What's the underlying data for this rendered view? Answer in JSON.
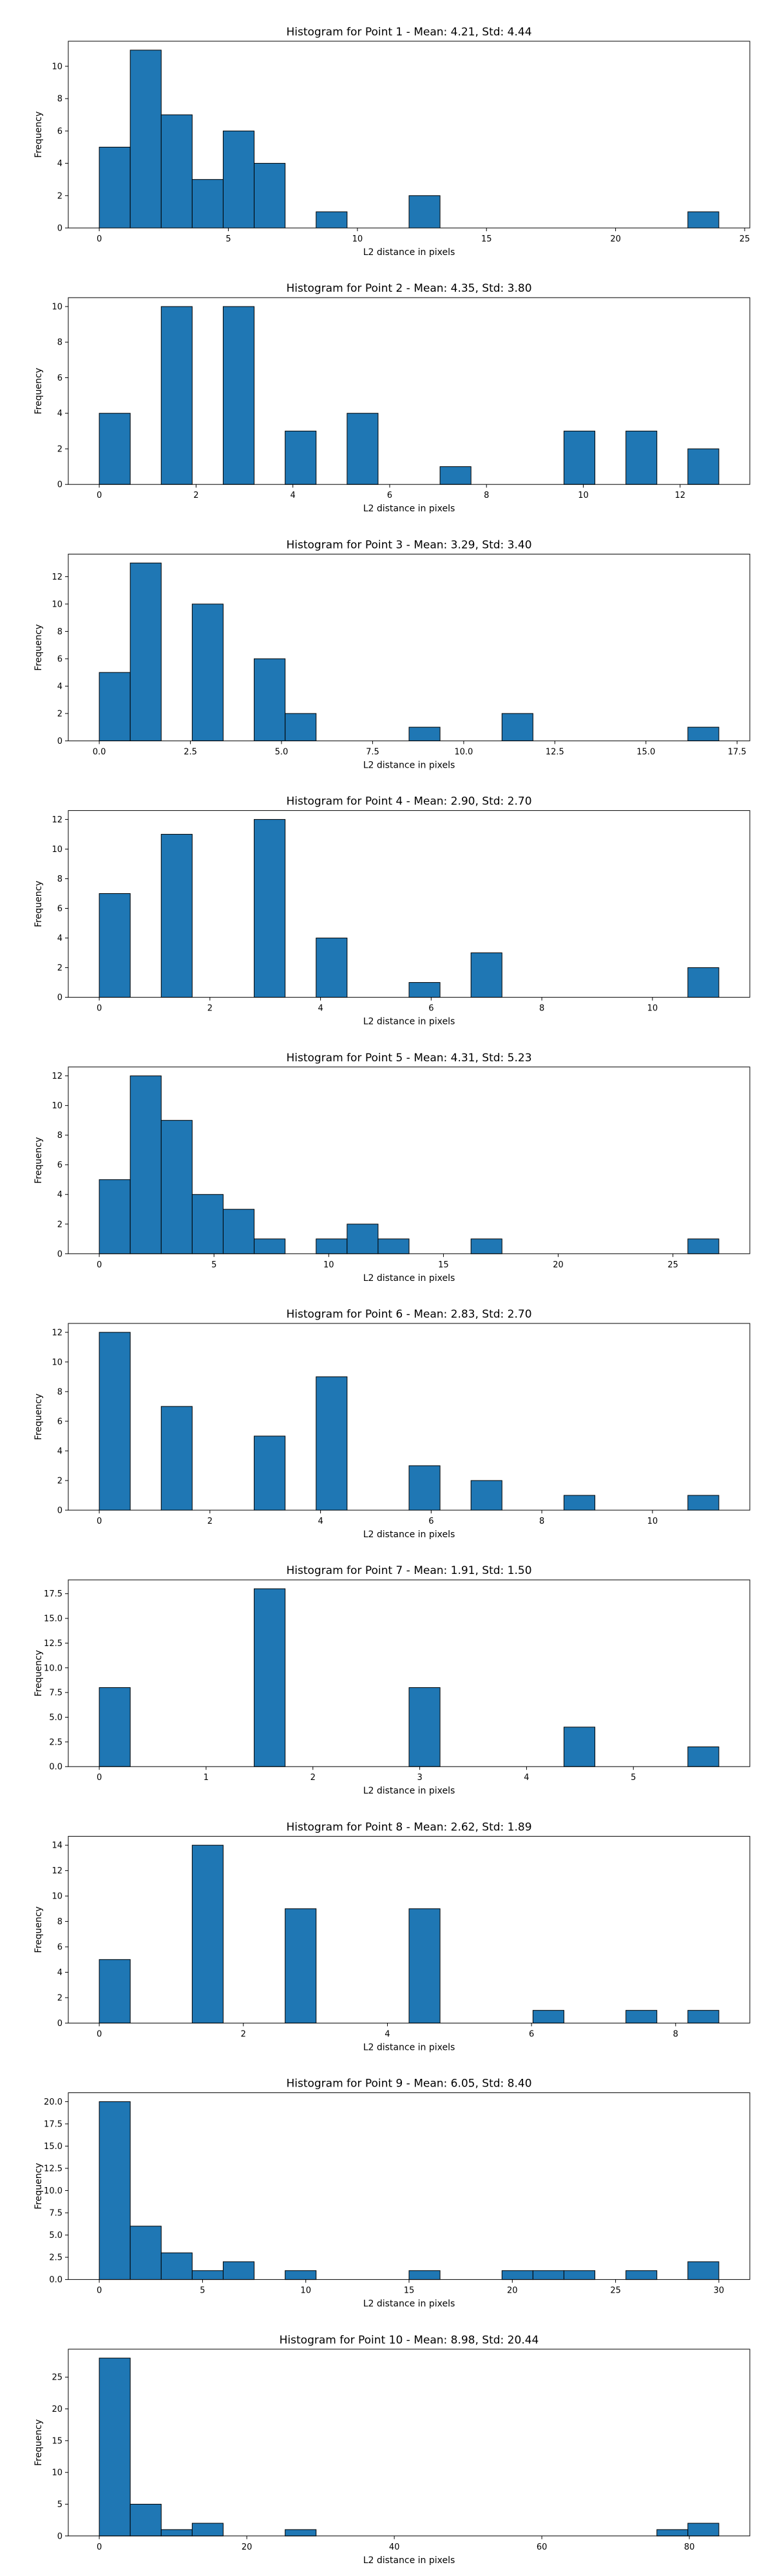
{
  "style": {
    "bar_color": "#1f77b4",
    "edge_color": "#000000"
  },
  "chart_data": [
    {
      "type": "bar",
      "title": "Histogram for Point 1 - Mean: 4.21, Std: 4.44",
      "xlabel": "L2 distance in pixels",
      "ylabel": "Frequency",
      "xlim": [
        -1.2,
        25.2
      ],
      "ylim": [
        0,
        11.55
      ],
      "xticks": [
        0,
        5,
        10,
        15,
        20,
        25
      ],
      "xtick_labels": [
        "0",
        "5",
        "10",
        "15",
        "20",
        "25"
      ],
      "yticks": [
        0,
        2,
        4,
        6,
        8,
        10
      ],
      "ytick_labels": [
        "0",
        "2",
        "4",
        "6",
        "8",
        "10"
      ],
      "bin_edges": [
        0.0,
        1.2,
        2.4,
        3.6,
        4.8,
        6.0,
        7.2,
        8.4,
        9.6,
        10.8,
        12.0,
        13.2,
        14.4,
        15.6,
        16.8,
        18.0,
        19.2,
        20.4,
        21.6,
        22.8,
        24.0
      ],
      "values": [
        5,
        11,
        7,
        3,
        6,
        4,
        0,
        1,
        0,
        0,
        2,
        0,
        0,
        0,
        0,
        0,
        0,
        0,
        0,
        1
      ]
    },
    {
      "type": "bar",
      "title": "Histogram for Point 2 - Mean: 4.35, Std: 3.80",
      "xlabel": "L2 distance in pixels",
      "ylabel": "Frequency",
      "xlim": [
        -0.64,
        13.44
      ],
      "ylim": [
        0,
        10.5
      ],
      "xticks": [
        0,
        2,
        4,
        6,
        8,
        10,
        12
      ],
      "xtick_labels": [
        "0",
        "2",
        "4",
        "6",
        "8",
        "10",
        "12"
      ],
      "yticks": [
        0,
        2,
        4,
        6,
        8,
        10
      ],
      "ytick_labels": [
        "0",
        "2",
        "4",
        "6",
        "8",
        "10"
      ],
      "bin_edges": [
        0.0,
        0.64,
        1.28,
        1.92,
        2.56,
        3.2,
        3.84,
        4.48,
        5.12,
        5.76,
        6.4,
        7.04,
        7.68,
        8.32,
        8.96,
        9.6,
        10.24,
        10.88,
        11.52,
        12.16,
        12.8
      ],
      "values": [
        4,
        0,
        10,
        0,
        10,
        0,
        3,
        0,
        4,
        0,
        0,
        1,
        0,
        0,
        0,
        3,
        0,
        3,
        0,
        2
      ]
    },
    {
      "type": "bar",
      "title": "Histogram for Point 3 - Mean: 3.29, Std: 3.40",
      "xlabel": "L2 distance in pixels",
      "ylabel": "Frequency",
      "xlim": [
        -0.85,
        17.85
      ],
      "ylim": [
        0,
        13.65
      ],
      "xticks": [
        0,
        2.5,
        5,
        7.5,
        10,
        12.5,
        15,
        17.5
      ],
      "xtick_labels": [
        "0.0",
        "2.5",
        "5.0",
        "7.5",
        "10.0",
        "12.5",
        "15.0",
        "17.5"
      ],
      "yticks": [
        0,
        2,
        4,
        6,
        8,
        10,
        12
      ],
      "ytick_labels": [
        "0",
        "2",
        "4",
        "6",
        "8",
        "10",
        "12"
      ],
      "bin_edges": [
        0.0,
        0.85,
        1.7,
        2.55,
        3.4,
        4.25,
        5.1,
        5.95,
        6.8,
        7.65,
        8.5,
        9.35,
        10.2,
        11.05,
        11.9,
        12.75,
        13.6,
        14.45,
        15.3,
        16.15,
        17.0
      ],
      "values": [
        5,
        13,
        0,
        10,
        0,
        6,
        2,
        0,
        0,
        0,
        1,
        0,
        0,
        2,
        0,
        0,
        0,
        0,
        0,
        1
      ]
    },
    {
      "type": "bar",
      "title": "Histogram for Point 4 - Mean: 2.90, Std: 2.70",
      "xlabel": "L2 distance in pixels",
      "ylabel": "Frequency",
      "xlim": [
        -0.56,
        11.76
      ],
      "ylim": [
        0,
        12.6
      ],
      "xticks": [
        0,
        2,
        4,
        6,
        8,
        10
      ],
      "xtick_labels": [
        "0",
        "2",
        "4",
        "6",
        "8",
        "10"
      ],
      "yticks": [
        0,
        2,
        4,
        6,
        8,
        10,
        12
      ],
      "ytick_labels": [
        "0",
        "2",
        "4",
        "6",
        "8",
        "10",
        "12"
      ],
      "bin_edges": [
        0.0,
        0.56,
        1.12,
        1.68,
        2.24,
        2.8,
        3.36,
        3.92,
        4.48,
        5.04,
        5.6,
        6.16,
        6.72,
        7.28,
        7.84,
        8.4,
        8.96,
        9.52,
        10.08,
        10.64,
        11.2
      ],
      "values": [
        7,
        0,
        11,
        0,
        0,
        12,
        0,
        4,
        0,
        0,
        1,
        0,
        3,
        0,
        0,
        0,
        0,
        0,
        0,
        2
      ]
    },
    {
      "type": "bar",
      "title": "Histogram for Point 5 - Mean: 4.31, Std: 5.23",
      "xlabel": "L2 distance in pixels",
      "ylabel": "Frequency",
      "xlim": [
        -1.35,
        28.35
      ],
      "ylim": [
        0,
        12.6
      ],
      "xticks": [
        0,
        5,
        10,
        15,
        20,
        25
      ],
      "xtick_labels": [
        "0",
        "5",
        "10",
        "15",
        "20",
        "25"
      ],
      "yticks": [
        0,
        2,
        4,
        6,
        8,
        10,
        12
      ],
      "ytick_labels": [
        "0",
        "2",
        "4",
        "6",
        "8",
        "10",
        "12"
      ],
      "bin_edges": [
        0.0,
        1.35,
        2.7,
        4.05,
        5.4,
        6.75,
        8.1,
        9.45,
        10.8,
        12.15,
        13.5,
        14.85,
        16.2,
        17.55,
        18.9,
        20.25,
        21.6,
        22.95,
        24.3,
        25.65,
        27.0
      ],
      "values": [
        5,
        12,
        9,
        4,
        3,
        1,
        0,
        1,
        2,
        1,
        0,
        0,
        1,
        0,
        0,
        0,
        0,
        0,
        0,
        1
      ]
    },
    {
      "type": "bar",
      "title": "Histogram for Point 6 - Mean: 2.83, Std: 2.70",
      "xlabel": "L2 distance in pixels",
      "ylabel": "Frequency",
      "xlim": [
        -0.56,
        11.76
      ],
      "ylim": [
        0,
        12.6
      ],
      "xticks": [
        0,
        2,
        4,
        6,
        8,
        10
      ],
      "xtick_labels": [
        "0",
        "2",
        "4",
        "6",
        "8",
        "10"
      ],
      "yticks": [
        0,
        2,
        4,
        6,
        8,
        10,
        12
      ],
      "ytick_labels": [
        "0",
        "2",
        "4",
        "6",
        "8",
        "10",
        "12"
      ],
      "bin_edges": [
        0.0,
        0.56,
        1.12,
        1.68,
        2.24,
        2.8,
        3.36,
        3.92,
        4.48,
        5.04,
        5.6,
        6.16,
        6.72,
        7.28,
        7.84,
        8.4,
        8.96,
        9.52,
        10.08,
        10.64,
        11.2
      ],
      "values": [
        12,
        0,
        7,
        0,
        0,
        5,
        0,
        9,
        0,
        0,
        3,
        0,
        2,
        0,
        0,
        1,
        0,
        0,
        0,
        1
      ]
    },
    {
      "type": "bar",
      "title": "Histogram for Point 7 - Mean: 1.91, Std: 1.50",
      "xlabel": "L2 distance in pixels",
      "ylabel": "Frequency",
      "xlim": [
        -0.29,
        6.09
      ],
      "ylim": [
        0,
        18.9
      ],
      "xticks": [
        0,
        1,
        2,
        3,
        4,
        5
      ],
      "xtick_labels": [
        "0",
        "1",
        "2",
        "3",
        "4",
        "5"
      ],
      "yticks": [
        0,
        2.5,
        5,
        7.5,
        10,
        12.5,
        15,
        17.5
      ],
      "ytick_labels": [
        "0.0",
        "2.5",
        "5.0",
        "7.5",
        "10.0",
        "12.5",
        "15.0",
        "17.5"
      ],
      "bin_edges": [
        0.0,
        0.29,
        0.58,
        0.87,
        1.16,
        1.45,
        1.74,
        2.03,
        2.32,
        2.61,
        2.9,
        3.19,
        3.48,
        3.77,
        4.06,
        4.35,
        4.64,
        4.93,
        5.22,
        5.51,
        5.8
      ],
      "values": [
        8,
        0,
        0,
        0,
        0,
        18,
        0,
        0,
        0,
        0,
        8,
        0,
        0,
        0,
        0,
        4,
        0,
        0,
        0,
        2
      ]
    },
    {
      "type": "bar",
      "title": "Histogram for Point 8 - Mean: 2.62, Std: 1.89",
      "xlabel": "L2 distance in pixels",
      "ylabel": "Frequency",
      "xlim": [
        -0.43,
        9.03
      ],
      "ylim": [
        0,
        14.7
      ],
      "xticks": [
        0,
        2,
        4,
        6,
        8
      ],
      "xtick_labels": [
        "0",
        "2",
        "4",
        "6",
        "8"
      ],
      "yticks": [
        0,
        2,
        4,
        6,
        8,
        10,
        12,
        14
      ],
      "ytick_labels": [
        "0",
        "2",
        "4",
        "6",
        "8",
        "10",
        "12",
        "14"
      ],
      "bin_edges": [
        0.0,
        0.43,
        0.86,
        1.29,
        1.72,
        2.15,
        2.58,
        3.01,
        3.44,
        3.87,
        4.3,
        4.73,
        5.16,
        5.59,
        6.02,
        6.45,
        6.88,
        7.31,
        7.74,
        8.17,
        8.6
      ],
      "values": [
        5,
        0,
        0,
        14,
        0,
        0,
        9,
        0,
        0,
        0,
        9,
        0,
        0,
        0,
        1,
        0,
        0,
        1,
        0,
        1
      ]
    },
    {
      "type": "bar",
      "title": "Histogram for Point 9 - Mean: 6.05, Std: 8.40",
      "xlabel": "L2 distance in pixels",
      "ylabel": "Frequency",
      "xlim": [
        -1.5,
        31.5
      ],
      "ylim": [
        0,
        21.0
      ],
      "xticks": [
        0,
        5,
        10,
        15,
        20,
        25,
        30
      ],
      "xtick_labels": [
        "0",
        "5",
        "10",
        "15",
        "20",
        "25",
        "30"
      ],
      "yticks": [
        0,
        2.5,
        5,
        7.5,
        10,
        12.5,
        15,
        17.5,
        20
      ],
      "ytick_labels": [
        "0.0",
        "2.5",
        "5.0",
        "7.5",
        "10.0",
        "12.5",
        "15.0",
        "17.5",
        "20.0"
      ],
      "bin_edges": [
        0.0,
        1.5,
        3.0,
        4.5,
        6.0,
        7.5,
        9.0,
        10.5,
        12.0,
        13.5,
        15.0,
        16.5,
        18.0,
        19.5,
        21.0,
        22.5,
        24.0,
        25.5,
        27.0,
        28.5,
        30.0
      ],
      "values": [
        20,
        6,
        3,
        1,
        2,
        0,
        1,
        0,
        0,
        0,
        1,
        0,
        0,
        1,
        1,
        1,
        0,
        1,
        0,
        2
      ]
    },
    {
      "type": "bar",
      "title": "Histogram for Point 10 - Mean: 8.98, Std: 20.44",
      "xlabel": "L2 distance in pixels",
      "ylabel": "Frequency",
      "xlim": [
        -4.2,
        88.2
      ],
      "ylim": [
        0,
        29.4
      ],
      "xticks": [
        0,
        20,
        40,
        60,
        80
      ],
      "xtick_labels": [
        "0",
        "20",
        "40",
        "60",
        "80"
      ],
      "yticks": [
        0,
        5,
        10,
        15,
        20,
        25
      ],
      "ytick_labels": [
        "0",
        "5",
        "10",
        "15",
        "20",
        "25"
      ],
      "bin_edges": [
        0.0,
        4.2,
        8.4,
        12.6,
        16.8,
        21.0,
        25.2,
        29.4,
        33.6,
        37.8,
        42.0,
        46.2,
        50.4,
        54.6,
        58.8,
        63.0,
        67.2,
        71.4,
        75.6,
        79.8,
        84.0
      ],
      "values": [
        28,
        5,
        1,
        2,
        0,
        0,
        1,
        0,
        0,
        0,
        0,
        0,
        0,
        0,
        0,
        0,
        0,
        0,
        1,
        2
      ]
    }
  ]
}
